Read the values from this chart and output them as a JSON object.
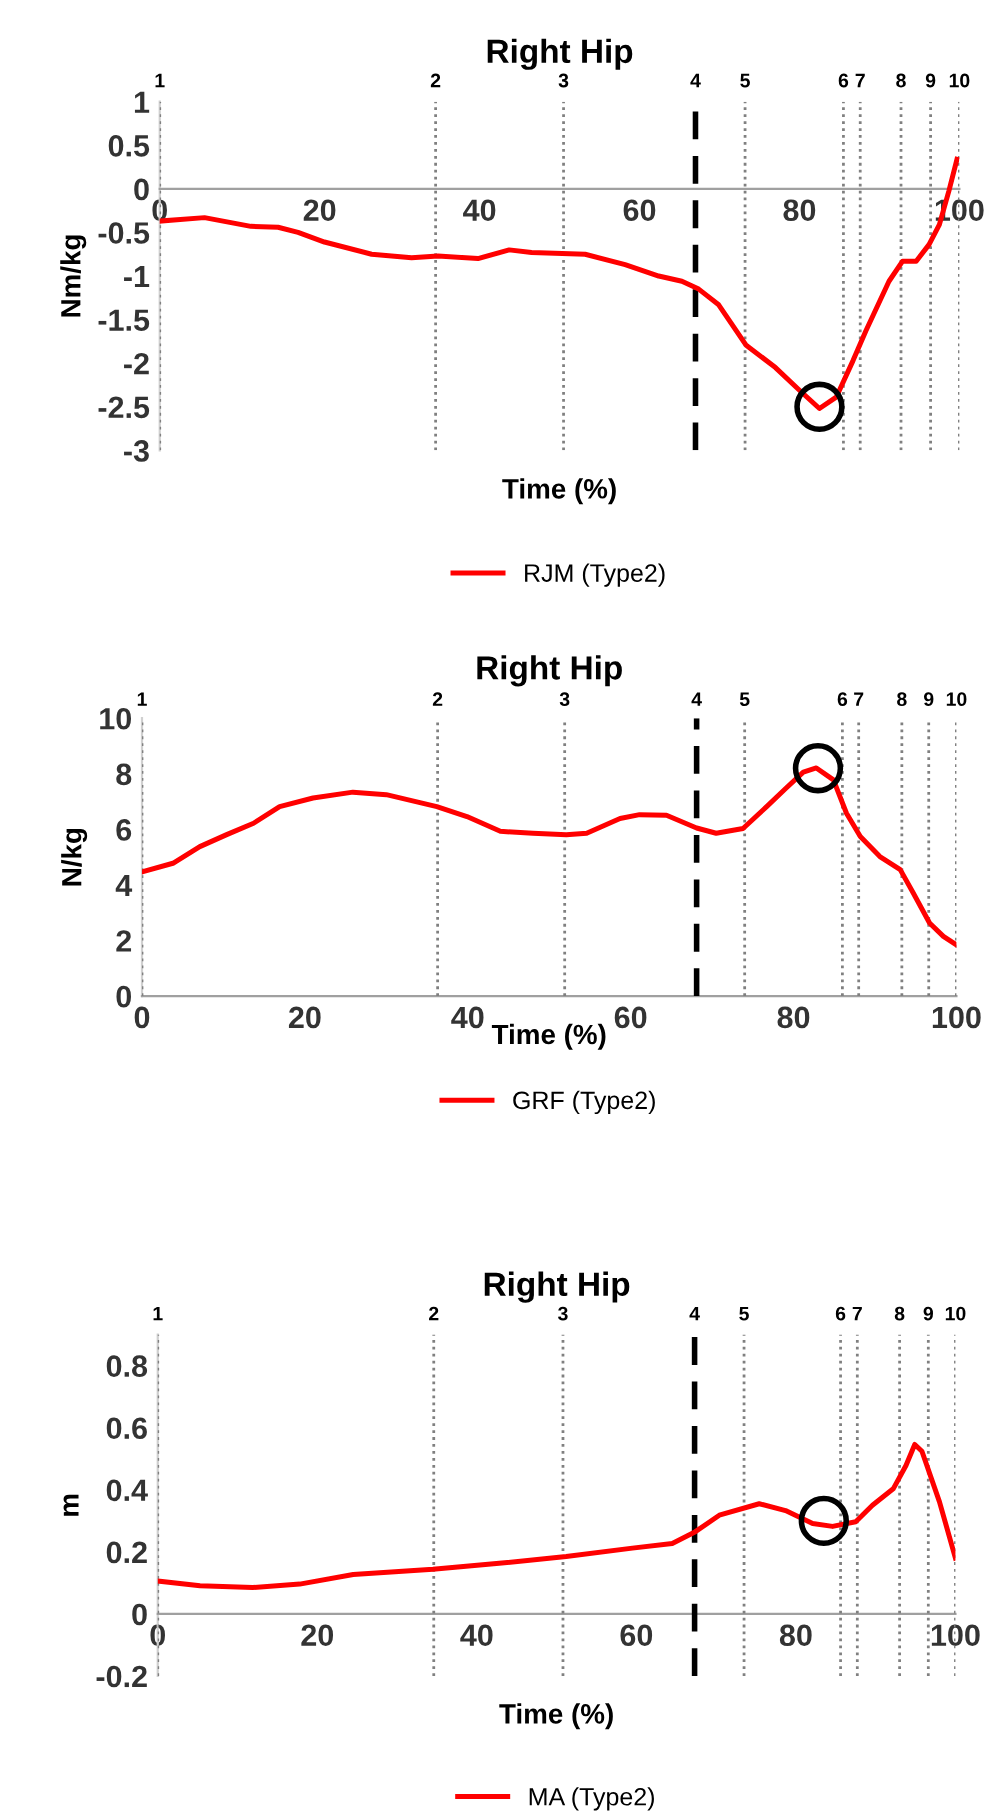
{
  "chart_data": [
    {
      "type": "line",
      "title": "Right Hip",
      "xlabel": "Time (%)",
      "ylabel": "Nm/kg",
      "xlim": [
        0,
        100
      ],
      "xticks": [
        0,
        20,
        40,
        60,
        80,
        100
      ],
      "ylim": [
        -3,
        1
      ],
      "yticks": [
        -3,
        -2.5,
        -2,
        -1.5,
        -1,
        -0.5,
        0,
        0.5,
        1
      ],
      "legend": "bottom",
      "grid": false,
      "series": [
        {
          "name": "RJM (Type2)",
          "color": "#ff0000",
          "type": "line",
          "marker": "none",
          "x": [
            0,
            5.6,
            11.4,
            14.8,
            17.3,
            20.6,
            26.5,
            31.5,
            34.8,
            39.8,
            43.7,
            46.5,
            53.2,
            58.2,
            62.4,
            65.3,
            67.4,
            69.9,
            73.3,
            77,
            80,
            82.5,
            84.6,
            86.7,
            88.3,
            91.2,
            92.9,
            94.6,
            96.2,
            97.5,
            98.7,
            99.7
          ],
          "values": [
            -0.37,
            -0.33,
            -0.43,
            -0.44,
            -0.5,
            -0.61,
            -0.75,
            -0.79,
            -0.77,
            -0.8,
            -0.7,
            -0.73,
            -0.75,
            -0.87,
            -1.0,
            -1.06,
            -1.15,
            -1.33,
            -1.79,
            -2.05,
            -2.31,
            -2.52,
            -2.39,
            -1.97,
            -1.63,
            -1.06,
            -0.83,
            -0.83,
            -0.64,
            -0.41,
            -0.02,
            0.34
          ]
        },
        {
          "color": "#000000",
          "type": "scatter",
          "marker": "circle",
          "x": [
            82.5
          ],
          "values": [
            -2.5
          ]
        }
      ],
      "ref_lines": [
        {
          "axis": "x",
          "value": 0,
          "color": "#808080",
          "line_style": "dotted"
        },
        {
          "axis": "x",
          "value": 34.5,
          "color": "#808080",
          "line_style": "dotted"
        },
        {
          "axis": "x",
          "value": 50.5,
          "color": "#808080",
          "line_style": "dotted"
        },
        {
          "axis": "x",
          "value": 67,
          "color": "#000000",
          "line_style": "dashed"
        },
        {
          "axis": "x",
          "value": 73.2,
          "color": "#808080",
          "line_style": "dotted"
        },
        {
          "axis": "x",
          "value": 85.5,
          "color": "#808080",
          "line_style": "dotted"
        },
        {
          "axis": "x",
          "value": 87.6,
          "color": "#808080",
          "line_style": "dotted"
        },
        {
          "axis": "x",
          "value": 92.7,
          "color": "#808080",
          "line_style": "dotted"
        },
        {
          "axis": "x",
          "value": 96.4,
          "color": "#808080",
          "line_style": "dotted"
        },
        {
          "axis": "x",
          "value": 100,
          "color": "#808080",
          "line_style": "dotted"
        }
      ],
      "annotations": [
        "1",
        "2",
        "3",
        "4",
        "5",
        "6",
        "7",
        "8",
        "9",
        "10"
      ]
    },
    {
      "type": "line",
      "title": "Right Hip",
      "xlabel": "Time (%)",
      "ylabel": "N/kg",
      "xlim": [
        0,
        100
      ],
      "xticks": [
        0,
        20,
        40,
        60,
        80,
        100
      ],
      "ylim": [
        0,
        10
      ],
      "yticks": [
        0,
        2,
        4,
        6,
        8,
        10
      ],
      "legend": "bottom",
      "grid": false,
      "series": [
        {
          "name": "GRF (Type2)",
          "color": "#ff0000",
          "type": "line",
          "marker": "none",
          "x": [
            0,
            3.8,
            7.1,
            10.4,
            13.7,
            16.9,
            21,
            25.9,
            30,
            36.2,
            39.9,
            44,
            48,
            52.1,
            54.6,
            58.7,
            61.1,
            64.4,
            68.1,
            70.5,
            73.8,
            76.7,
            79.1,
            81.2,
            82.8,
            84.9,
            86.5,
            88.2,
            90.6,
            93.1,
            94.7,
            96.7,
            98.4,
            100
          ],
          "values": [
            4.47,
            4.78,
            5.38,
            5.81,
            6.22,
            6.82,
            7.13,
            7.34,
            7.25,
            6.82,
            6.46,
            5.93,
            5.86,
            5.81,
            5.86,
            6.39,
            6.53,
            6.51,
            6.05,
            5.86,
            6.03,
            6.82,
            7.49,
            8.06,
            8.21,
            7.78,
            6.58,
            5.74,
            5.02,
            4.55,
            3.71,
            2.63,
            2.15,
            1.84
          ]
        },
        {
          "color": "#000000",
          "type": "scatter",
          "marker": "circle",
          "x": [
            83
          ],
          "values": [
            8.2
          ]
        }
      ],
      "ref_lines": [
        {
          "axis": "x",
          "value": 0,
          "color": "#808080",
          "line_style": "dotted"
        },
        {
          "axis": "x",
          "value": 36.3,
          "color": "#808080",
          "line_style": "dotted"
        },
        {
          "axis": "x",
          "value": 51.9,
          "color": "#808080",
          "line_style": "dotted"
        },
        {
          "axis": "x",
          "value": 68.1,
          "color": "#000000",
          "line_style": "dashed"
        },
        {
          "axis": "x",
          "value": 74,
          "color": "#808080",
          "line_style": "dotted"
        },
        {
          "axis": "x",
          "value": 86,
          "color": "#808080",
          "line_style": "dotted"
        },
        {
          "axis": "x",
          "value": 88,
          "color": "#808080",
          "line_style": "dotted"
        },
        {
          "axis": "x",
          "value": 93.3,
          "color": "#808080",
          "line_style": "dotted"
        },
        {
          "axis": "x",
          "value": 96.6,
          "color": "#808080",
          "line_style": "dotted"
        },
        {
          "axis": "x",
          "value": 100,
          "color": "#808080",
          "line_style": "dotted"
        }
      ],
      "annotations": [
        "1",
        "2",
        "3",
        "4",
        "5",
        "6",
        "7",
        "8",
        "9",
        "10"
      ]
    },
    {
      "type": "line",
      "title": "Right Hip",
      "xlabel": "Time (%)",
      "ylabel": "m",
      "xlim": [
        0,
        100
      ],
      "xticks": [
        0,
        20,
        40,
        60,
        80,
        100
      ],
      "ylim": [
        -0.2,
        0.9
      ],
      "yticks": [
        -0.2,
        0,
        0.2,
        0.4,
        0.6,
        0.8
      ],
      "legend": "bottom",
      "grid": false,
      "series": [
        {
          "name": "MA (Type2)",
          "color": "#ff0000",
          "type": "line",
          "marker": "none",
          "x": [
            0,
            5.3,
            11.9,
            17.8,
            24.5,
            34.5,
            42.8,
            51.2,
            59.5,
            64.5,
            67.4,
            70.4,
            75.4,
            78.7,
            82.1,
            84.6,
            87.5,
            89.6,
            92.2,
            93.8,
            94.9,
            95.8,
            98,
            100
          ],
          "values": [
            0.106,
            0.091,
            0.085,
            0.096,
            0.127,
            0.144,
            0.163,
            0.185,
            0.212,
            0.227,
            0.265,
            0.318,
            0.355,
            0.333,
            0.291,
            0.282,
            0.297,
            0.35,
            0.403,
            0.478,
            0.546,
            0.524,
            0.361,
            0.18
          ]
        },
        {
          "color": "#000000",
          "type": "scatter",
          "marker": "circle",
          "x": [
            83.5
          ],
          "values": [
            0.3
          ]
        }
      ],
      "ref_lines": [
        {
          "axis": "x",
          "value": 0,
          "color": "#808080",
          "line_style": "dotted"
        },
        {
          "axis": "x",
          "value": 34.6,
          "color": "#808080",
          "line_style": "dotted"
        },
        {
          "axis": "x",
          "value": 50.8,
          "color": "#808080",
          "line_style": "dotted"
        },
        {
          "axis": "x",
          "value": 67.3,
          "color": "#000000",
          "line_style": "dashed"
        },
        {
          "axis": "x",
          "value": 73.5,
          "color": "#808080",
          "line_style": "dotted"
        },
        {
          "axis": "x",
          "value": 85.6,
          "color": "#808080",
          "line_style": "dotted"
        },
        {
          "axis": "x",
          "value": 87.7,
          "color": "#808080",
          "line_style": "dotted"
        },
        {
          "axis": "x",
          "value": 93,
          "color": "#808080",
          "line_style": "dotted"
        },
        {
          "axis": "x",
          "value": 96.6,
          "color": "#808080",
          "line_style": "dotted"
        },
        {
          "axis": "x",
          "value": 100,
          "color": "#808080",
          "line_style": "dotted"
        }
      ],
      "annotations": [
        "1",
        "2",
        "3",
        "4",
        "5",
        "6",
        "7",
        "8",
        "9",
        "10"
      ]
    }
  ]
}
